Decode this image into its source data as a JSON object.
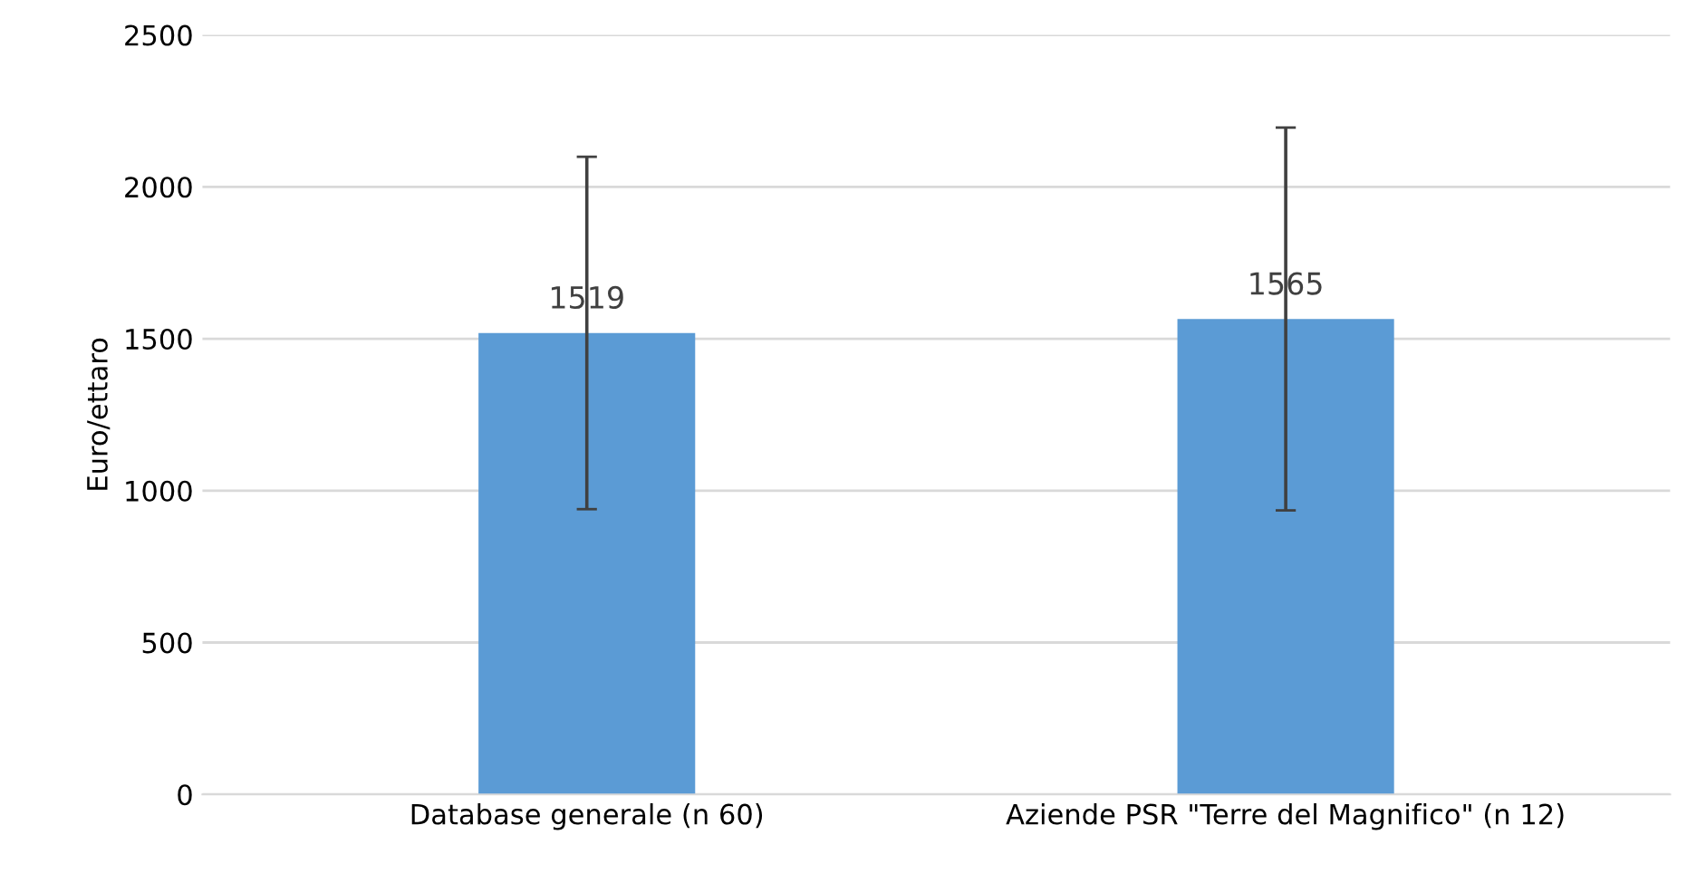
{
  "chart_data": {
    "type": "bar",
    "ylabel": "Euro/ettaro",
    "categories": [
      "Database generale (n 60)",
      "Aziende PSR \"Terre del Magnifico\" (n 12)"
    ],
    "values": [
      1519,
      1565
    ],
    "errors": [
      580,
      630
    ],
    "color": "#5b9bd5",
    "ylim": [
      0,
      2500
    ],
    "yticks": [
      0,
      500,
      1000,
      1500,
      2000,
      2500
    ],
    "grid": "y",
    "data_labels": true
  }
}
